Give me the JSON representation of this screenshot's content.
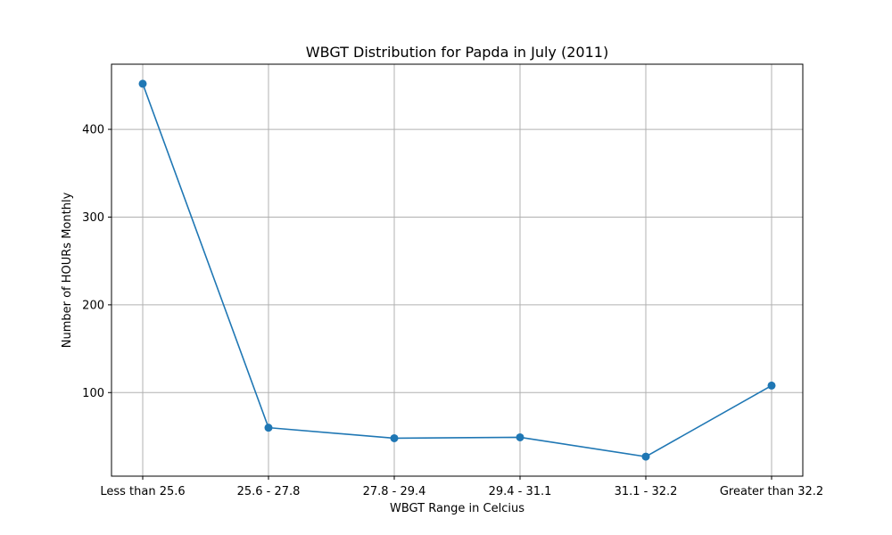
{
  "chart_data": {
    "type": "line",
    "title": "WBGT Distribution for Papda in July (2011)",
    "xlabel": "WBGT Range in Celcius",
    "ylabel": "Number of HOURs Monthly",
    "categories": [
      "Less than 25.6",
      "25.6 - 27.8",
      "27.8 - 29.4",
      "29.4 - 31.1",
      "31.1 - 32.2",
      "Greater than 32.2"
    ],
    "series": [
      {
        "values": [
          452,
          60,
          48,
          49,
          27,
          108
        ],
        "color": "#1f77b4",
        "marker": "circle"
      }
    ],
    "yticks": [
      100,
      200,
      300,
      400
    ],
    "ylim": [
      4.75,
      474.25
    ],
    "grid": true,
    "legend": "none"
  }
}
